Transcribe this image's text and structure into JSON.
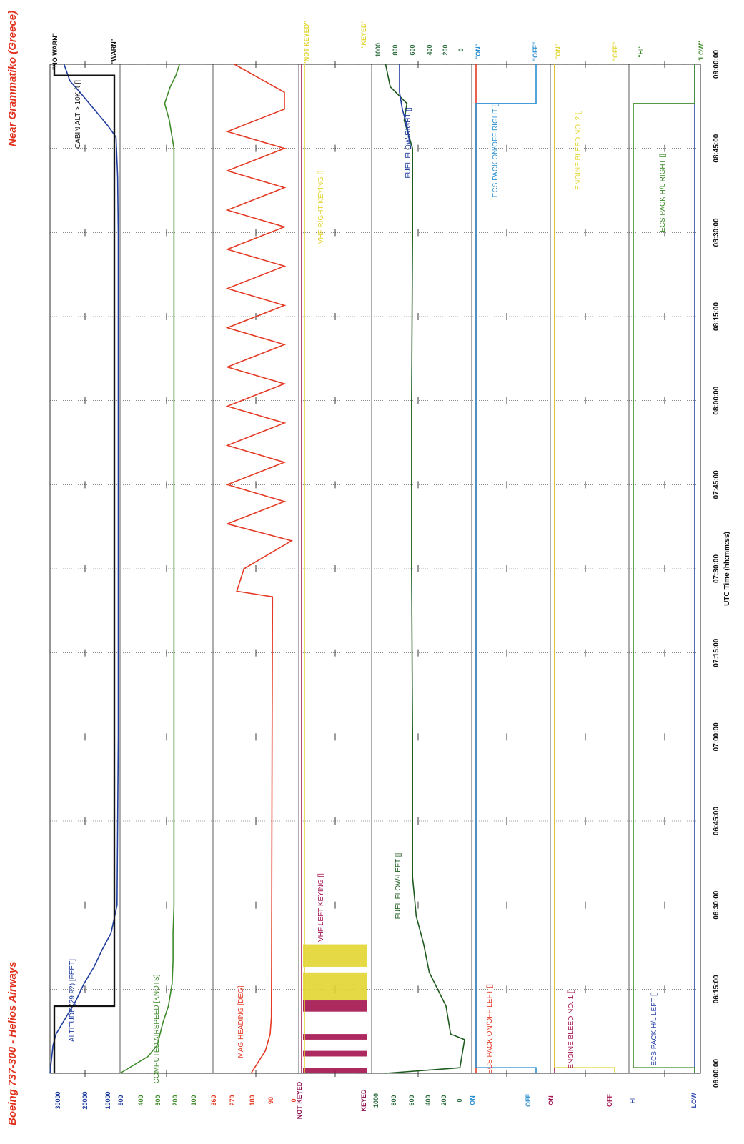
{
  "page": {
    "title": "Boeing 737-300 - Helios Airways",
    "location": "Near Grammatiko (Greece)"
  },
  "chart_data": {
    "type": "line",
    "x_axis": {
      "label": "UTC Time (hh:mm:ss)",
      "range": [
        "06:00:00",
        "09:00:00"
      ],
      "ticks": [
        "06:00:00",
        "06:15:00",
        "06:30:00",
        "06:45:00",
        "07:00:00",
        "07:15:00",
        "07:30:00",
        "07:45:00",
        "08:00:00",
        "08:15:00",
        "08:30:00",
        "08:45:00",
        "09:00:00"
      ]
    },
    "panels": [
      {
        "id": "altitude",
        "color": "#1f3d9e",
        "ylim": [
          0,
          35000
        ],
        "tick_labels": [
          "30000",
          "20000",
          "10000",
          "500"
        ],
        "series": [
          {
            "name": "ALTITUDE (29.92) [FEET]",
            "color": "#1f3d9e",
            "type": "continuous",
            "points": [
              [
                "06:00:00",
                0
              ],
              [
                "06:05:00",
                1500
              ],
              [
                "06:07:00",
                3000
              ],
              [
                "06:10:00",
                8000
              ],
              [
                "06:13:00",
                13000
              ],
              [
                "06:16:00",
                17000
              ],
              [
                "06:19:00",
                22000
              ],
              [
                "06:22:00",
                26000
              ],
              [
                "06:25:00",
                30500
              ],
              [
                "06:30:00",
                33500
              ],
              [
                "07:00:00",
                34100
              ],
              [
                "07:30:00",
                34100
              ],
              [
                "08:00:00",
                34100
              ],
              [
                "08:30:00",
                34100
              ],
              [
                "08:40:00",
                33800
              ],
              [
                "08:47:00",
                33000
              ],
              [
                "08:49:00",
                29000
              ],
              [
                "08:52:00",
                22000
              ],
              [
                "08:55:00",
                15000
              ],
              [
                "08:57:00",
                10000
              ],
              [
                "09:00:00",
                7000
              ]
            ]
          },
          {
            "name": "CABIN ALT > 10K ft []",
            "color": "#111111",
            "type": "discrete",
            "states": [
              "\"NO WARN\"",
              "\"WARN\""
            ],
            "points": [
              [
                "06:00:00",
                "NO WARN"
              ],
              [
                "06:12:00",
                "NO WARN"
              ],
              [
                "06:12:00",
                "WARN"
              ],
              [
                "08:58:00",
                "WARN"
              ],
              [
                "08:58:00",
                "NO WARN"
              ],
              [
                "09:00:00",
                "NO WARN"
              ]
            ]
          }
        ]
      },
      {
        "id": "airspeed",
        "color": "#3e8a2a",
        "ylim": [
          0,
          500
        ],
        "tick_labels": [
          "400",
          "300",
          "200",
          "100"
        ],
        "series": [
          {
            "name": "COMPUTED AIRSPEED [KNOTS]",
            "color": "#3e8a2a",
            "points": [
              [
                "06:00:00",
                0
              ],
              [
                "06:03:00",
                150
              ],
              [
                "06:05:00",
                200
              ],
              [
                "06:09:00",
                230
              ],
              [
                "06:12:00",
                260
              ],
              [
                "06:16:00",
                280
              ],
              [
                "06:20:00",
                285
              ],
              [
                "06:25:00",
                285
              ],
              [
                "06:30:00",
                290
              ],
              [
                "07:00:00",
                290
              ],
              [
                "07:30:00",
                290
              ],
              [
                "08:00:00",
                290
              ],
              [
                "08:30:00",
                290
              ],
              [
                "08:45:00",
                290
              ],
              [
                "08:50:00",
                265
              ],
              [
                "08:53:00",
                240
              ],
              [
                "08:56:00",
                270
              ],
              [
                "08:58:00",
                300
              ],
              [
                "09:00:00",
                320
              ]
            ]
          }
        ]
      },
      {
        "id": "heading",
        "color": "#e43a24",
        "ylim": [
          0,
          360
        ],
        "tick_labels": [
          "360",
          "270",
          "180",
          "90",
          "0"
        ],
        "series": [
          {
            "name": "MAG HEADING [DEG]",
            "color": "#e43a24",
            "points": [
              [
                "06:00:00",
                160
              ],
              [
                "06:04:00",
                220
              ],
              [
                "06:07:00",
                240
              ],
              [
                "06:10:00",
                245
              ],
              [
                "06:20:00",
                246
              ],
              [
                "07:00:00",
                248
              ],
              [
                "07:25:00",
                250
              ],
              [
                "07:26:00",
                100
              ],
              [
                "07:30:00",
                130
              ],
              [
                "07:35:00",
                330
              ],
              [
                "07:38:00",
                60
              ],
              [
                "07:42:00",
                300
              ],
              [
                "07:45:00",
                60
              ],
              [
                "07:49:00",
                300
              ],
              [
                "07:52:00",
                60
              ],
              [
                "07:56:00",
                300
              ],
              [
                "07:59:00",
                60
              ],
              [
                "08:03:00",
                300
              ],
              [
                "08:06:00",
                60
              ],
              [
                "08:10:00",
                300
              ],
              [
                "08:13:00",
                60
              ],
              [
                "08:17:00",
                300
              ],
              [
                "08:20:00",
                60
              ],
              [
                "08:24:00",
                300
              ],
              [
                "08:27:00",
                60
              ],
              [
                "08:31:00",
                300
              ],
              [
                "08:34:00",
                60
              ],
              [
                "08:38:00",
                300
              ],
              [
                "08:41:00",
                60
              ],
              [
                "08:45:00",
                300
              ],
              [
                "08:48:00",
                60
              ],
              [
                "08:52:00",
                300
              ],
              [
                "08:55:00",
                300
              ],
              [
                "09:00:00",
                90
              ]
            ]
          }
        ]
      },
      {
        "id": "vhf",
        "color": "#8b0f4e",
        "ylim": [
          0,
          1
        ],
        "tick_labels": [
          "NOT KEYED",
          "KEYED"
        ],
        "series": [
          {
            "name": "VHF LEFT KEYING []",
            "color": "#a3134f",
            "states": [
              "NOT KEYED",
              "KEYED"
            ],
            "keyed_intervals": [
              [
                "06:00:00",
                "06:01:00"
              ],
              [
                "06:03:00",
                "06:04:00"
              ],
              [
                "06:06:00",
                "06:07:00"
              ],
              [
                "06:11:00",
                "06:13:00"
              ]
            ]
          },
          {
            "name": "VHF RIGHT KEYING []",
            "color": "#e2d531",
            "states": [
              "\"NOT KEYED\"",
              "\"KEYED\""
            ],
            "keyed_intervals": [
              [
                "06:13:00",
                "06:18:00"
              ],
              [
                "06:19:00",
                "06:23:00"
              ]
            ]
          }
        ]
      },
      {
        "id": "fuel",
        "color": "#2c6b3e",
        "ylim": [
          0,
          1000
        ],
        "tick_labels": [
          "1000",
          "800",
          "600",
          "400",
          "200",
          "0"
        ],
        "right_tick_labels": [
          "1000",
          "800",
          "600",
          "400",
          "200",
          "0"
        ],
        "series": [
          {
            "name": "FUEL FLOW-LEFT []",
            "color": "#1c5a1e",
            "points": [
              [
                "06:00:00",
                150
              ],
              [
                "06:01:00",
                950
              ],
              [
                "06:06:00",
                1000
              ],
              [
                "06:07:00",
                850
              ],
              [
                "06:12:00",
                800
              ],
              [
                "06:18:00",
                620
              ],
              [
                "06:23:00",
                560
              ],
              [
                "06:28:00",
                480
              ],
              [
                "06:35:00",
                440
              ],
              [
                "07:00:00",
                440
              ],
              [
                "07:30:00",
                430
              ],
              [
                "08:00:00",
                430
              ],
              [
                "08:30:00",
                440
              ],
              [
                "08:45:00",
                440
              ],
              [
                "08:50:00",
                350
              ],
              [
                "08:53:00",
                380
              ],
              [
                "08:56:00",
                200
              ],
              [
                "09:00:00",
                150
              ]
            ]
          },
          {
            "name": "FUEL FLOW-RIGHT []",
            "color": "#1f3d9e",
            "points": [
              [
                "08:45:00",
                420
              ],
              [
                "08:49:00",
                380
              ],
              [
                "08:52:00",
                330
              ],
              [
                "08:55:00",
                300
              ],
              [
                "09:00:00",
                300
              ]
            ]
          }
        ]
      },
      {
        "id": "ecs_pack",
        "color": "#2b8fd0",
        "ylim": [
          0,
          1
        ],
        "tick_labels": [
          "ON",
          "OFF"
        ],
        "series": [
          {
            "name": "ECS PACK ON/OFF LEFT []",
            "color": "#e43a24",
            "states": [
              "ON",
              "OFF"
            ],
            "points": [
              [
                "06:00:00",
                "ON"
              ],
              [
                "09:00:00",
                "ON"
              ]
            ]
          },
          {
            "name": "ECS PACK ON/OFF RIGHT []",
            "color": "#2b8fd0",
            "states": [
              "\"ON\"",
              "\"OFF\""
            ],
            "points": [
              [
                "06:00:00",
                "OFF"
              ],
              [
                "06:01:00",
                "OFF"
              ],
              [
                "06:01:00",
                "ON"
              ],
              [
                "08:53:00",
                "ON"
              ],
              [
                "08:53:00",
                "OFF"
              ],
              [
                "09:00:00",
                "OFF"
              ]
            ]
          }
        ]
      },
      {
        "id": "bleed",
        "color": "#a3134f",
        "ylim": [
          0,
          1
        ],
        "tick_labels": [
          "ON",
          "OFF"
        ],
        "series": [
          {
            "name": "ENGINE BLEED NO. 1 []",
            "color": "#a3134f",
            "states": [
              "ON",
              "OFF"
            ],
            "points": [
              [
                "06:00:00",
                "ON"
              ],
              [
                "09:00:00",
                "ON"
              ]
            ]
          },
          {
            "name": "ENGINE BLEED NO. 2 []",
            "color": "#e2d531",
            "states": [
              "\"ON\"",
              "\"OFF\""
            ],
            "points": [
              [
                "06:00:00",
                "OFF"
              ],
              [
                "06:01:00",
                "OFF"
              ],
              [
                "06:01:00",
                "ON"
              ],
              [
                "09:00:00",
                "ON"
              ]
            ]
          }
        ]
      },
      {
        "id": "ecs_hl",
        "color": "#2b44a8",
        "ylim": [
          0,
          1
        ],
        "tick_labels": [
          "HI",
          "LOW"
        ],
        "series": [
          {
            "name": "ECS PACK H/L LEFT []",
            "color": "#2b44a8",
            "states": [
              "HI",
              "LOW"
            ],
            "points": [
              [
                "06:00:00",
                "LOW"
              ],
              [
                "09:00:00",
                "LOW"
              ]
            ]
          },
          {
            "name": "ECS PACK H/L RIGHT []",
            "color": "#3e8a2a",
            "states": [
              "\"HI\"",
              "\"LOW\""
            ],
            "points": [
              [
                "06:00:00",
                "LOW"
              ],
              [
                "06:01:00",
                "LOW"
              ],
              [
                "06:01:00",
                "HI"
              ],
              [
                "08:53:00",
                "HI"
              ],
              [
                "08:53:00",
                "LOW"
              ],
              [
                "09:00:00",
                "LOW"
              ]
            ]
          }
        ]
      }
    ]
  }
}
